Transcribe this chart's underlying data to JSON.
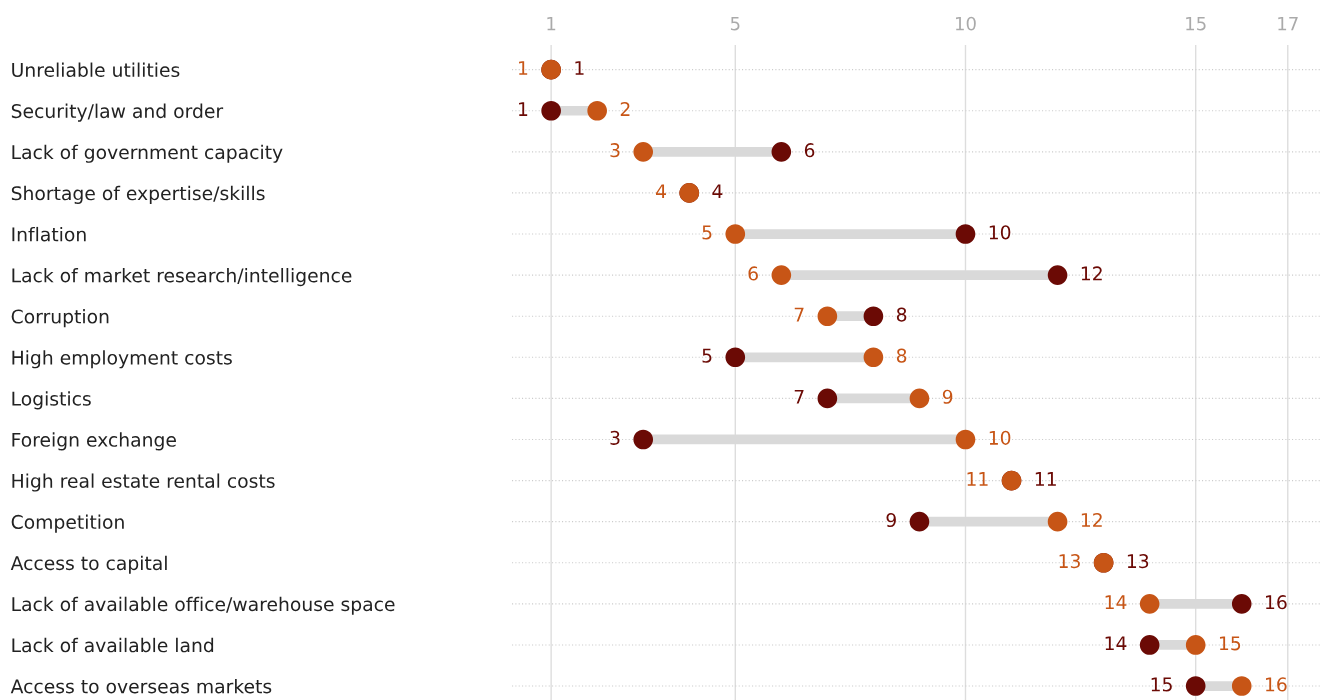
{
  "chart_data": {
    "type": "scatter",
    "orientation": "horizontal",
    "categories": [
      "Unreliable utilities",
      "Security/law and order",
      "Lack of government capacity",
      "Shortage of expertise/skills",
      "Inflation",
      "Lack of market research/intelligence",
      "Corruption",
      "High employment costs",
      "Logistics",
      "Foreign exchange",
      "High real estate rental costs",
      "Competition",
      "Access to capital",
      "Lack of available office/warehouse space",
      "Lack of available land",
      "Access to overseas markets"
    ],
    "series": [
      {
        "color": "#c75516",
        "values": [
          1,
          2,
          3,
          4,
          5,
          6,
          7,
          8,
          9,
          10,
          11,
          12,
          13,
          14,
          15,
          16
        ]
      },
      {
        "color": "#6b0a05",
        "values": [
          1,
          1,
          6,
          4,
          10,
          12,
          8,
          5,
          7,
          3,
          11,
          9,
          13,
          16,
          14,
          15
        ]
      }
    ],
    "xlim": [
      0.15,
      17.7
    ],
    "xticks": [
      1,
      5,
      10,
      15,
      17
    ],
    "grid": true,
    "marker": "circle",
    "data_labels": true
  }
}
